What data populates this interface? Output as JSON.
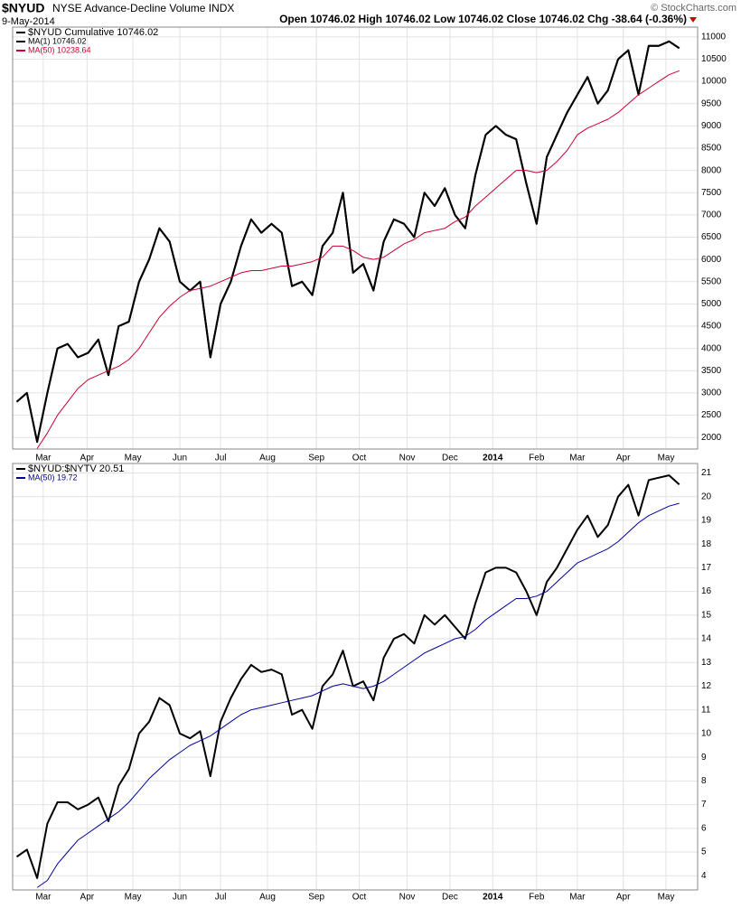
{
  "header": {
    "symbol": "$NYUD",
    "name": "NYSE Advance-Decline Volume INDX",
    "date": "9-May-2014",
    "quote": "Open 10746.02  High 10746.02  Low 10746.02  Close 10746.02  Chg -38.64 (-0.36%)",
    "source": "© StockCharts.com"
  },
  "chart_data": [
    {
      "type": "line",
      "xlim": [
        -0.4,
        66.8
      ],
      "ylim": [
        1740,
        11220
      ],
      "xticks": [
        {
          "value": 2.6,
          "label": "Mar"
        },
        {
          "value": 6.9,
          "label": "Apr"
        },
        {
          "value": 11.4,
          "label": "May"
        },
        {
          "value": 16,
          "label": "Jun"
        },
        {
          "value": 20,
          "label": "Jul"
        },
        {
          "value": 24.6,
          "label": "Aug"
        },
        {
          "value": 29.4,
          "label": "Sep"
        },
        {
          "value": 33.6,
          "label": "Oct"
        },
        {
          "value": 38.3,
          "label": "Nov"
        },
        {
          "value": 42.5,
          "label": "Dec"
        },
        {
          "value": 46.7,
          "label": "2014"
        },
        {
          "value": 51,
          "label": "Feb"
        },
        {
          "value": 55,
          "label": "Mar"
        },
        {
          "value": 59.5,
          "label": "Apr"
        },
        {
          "value": 63.7,
          "label": "May"
        }
      ],
      "yticks": [
        2000,
        2500,
        3000,
        3500,
        4000,
        4500,
        5000,
        5500,
        6000,
        6500,
        7000,
        7500,
        8000,
        8500,
        9000,
        9500,
        10000,
        10500,
        11000
      ],
      "grid": true,
      "series": [
        {
          "name": "$NYUD Cumulative 10746.02",
          "color": "#000000",
          "values": [
            2800,
            3000,
            1900,
            3000,
            4000,
            4100,
            3800,
            3900,
            4200,
            3400,
            4500,
            4600,
            5500,
            6000,
            6700,
            6400,
            5500,
            5300,
            5500,
            3800,
            5000,
            5500,
            6300,
            6900,
            6600,
            6800,
            6600,
            5400,
            5500,
            5200,
            6300,
            6600,
            7500,
            5700,
            5900,
            5300,
            6400,
            6900,
            6800,
            6500,
            7500,
            7200,
            7600,
            7000,
            6700,
            7900,
            8800,
            9000,
            8800,
            8700,
            7700,
            6800,
            8300,
            8800,
            9300,
            9700,
            10100,
            9500,
            9800,
            10500,
            10700,
            9700,
            10800,
            10800,
            10900,
            10746.02
          ]
        },
        {
          "name": "MA(1) 10746.02",
          "color": "#000000",
          "values": [
            2800,
            3000,
            1900,
            3000,
            4000,
            4100,
            3800,
            3900,
            4200,
            3400,
            4500,
            4600,
            5500,
            6000,
            6700,
            6400,
            5500,
            5300,
            5500,
            3800,
            5000,
            5500,
            6300,
            6900,
            6600,
            6800,
            6600,
            5400,
            5500,
            5200,
            6300,
            6600,
            7500,
            5700,
            5900,
            5300,
            6400,
            6900,
            6800,
            6500,
            7500,
            7200,
            7600,
            7000,
            6700,
            7900,
            8800,
            9000,
            8800,
            8700,
            7700,
            6800,
            8300,
            8800,
            9300,
            9700,
            10100,
            9500,
            9800,
            10500,
            10700,
            9700,
            10800,
            10800,
            10900,
            10746.02
          ]
        },
        {
          "name": "MA(50) 10238.64",
          "color": "#cc0033",
          "values": [
            null,
            null,
            1750,
            2100,
            2500,
            2800,
            3100,
            3300,
            3400,
            3500,
            3600,
            3750,
            4000,
            4350,
            4700,
            4950,
            5150,
            5300,
            5350,
            5400,
            5500,
            5600,
            5700,
            5750,
            5750,
            5800,
            5850,
            5850,
            5900,
            5950,
            6050,
            6300,
            6300,
            6200,
            6050,
            6000,
            6050,
            6200,
            6350,
            6450,
            6600,
            6650,
            6700,
            6850,
            6950,
            7200,
            7400,
            7600,
            7800,
            8000,
            8000,
            7950,
            8000,
            8200,
            8450,
            8800,
            8950,
            9050,
            9150,
            9300,
            9500,
            9700,
            9850,
            10000,
            10150,
            10238.64
          ]
        }
      ]
    },
    {
      "type": "line",
      "xlim": [
        -0.4,
        66.8
      ],
      "ylim": [
        3.4,
        21.4
      ],
      "xticks": [
        {
          "value": 2.6,
          "label": "Mar"
        },
        {
          "value": 6.9,
          "label": "Apr"
        },
        {
          "value": 11.4,
          "label": "May"
        },
        {
          "value": 16,
          "label": "Jun"
        },
        {
          "value": 20,
          "label": "Jul"
        },
        {
          "value": 24.6,
          "label": "Aug"
        },
        {
          "value": 29.4,
          "label": "Sep"
        },
        {
          "value": 33.6,
          "label": "Oct"
        },
        {
          "value": 38.3,
          "label": "Nov"
        },
        {
          "value": 42.5,
          "label": "Dec"
        },
        {
          "value": 46.7,
          "label": "2014"
        },
        {
          "value": 51,
          "label": "Feb"
        },
        {
          "value": 55,
          "label": "Mar"
        },
        {
          "value": 59.5,
          "label": "Apr"
        },
        {
          "value": 63.7,
          "label": "May"
        }
      ],
      "yticks": [
        4,
        5,
        6,
        7,
        8,
        9,
        10,
        11,
        12,
        13,
        14,
        15,
        16,
        17,
        18,
        19,
        20,
        21
      ],
      "grid": true,
      "series": [
        {
          "name": "$NYUD:$NYTV 20.51",
          "color": "#000000",
          "values": [
            4.8,
            5.1,
            3.9,
            6.2,
            7.1,
            7.1,
            6.8,
            7.0,
            7.3,
            6.3,
            7.8,
            8.5,
            10.0,
            10.5,
            11.5,
            11.2,
            10.0,
            9.8,
            10.1,
            8.2,
            10.5,
            11.5,
            12.3,
            12.9,
            12.6,
            12.7,
            12.5,
            10.8,
            11.0,
            10.2,
            12.0,
            12.5,
            13.5,
            12.0,
            12.2,
            11.4,
            13.2,
            14.0,
            14.2,
            13.8,
            15.0,
            14.6,
            15.0,
            14.5,
            14.0,
            15.5,
            16.8,
            17.0,
            17.0,
            16.8,
            16.0,
            15.0,
            16.4,
            17.0,
            17.8,
            18.6,
            19.2,
            18.3,
            18.8,
            20.0,
            20.5,
            19.2,
            20.7,
            20.8,
            20.9,
            20.51
          ]
        },
        {
          "name": "MA(50) 19.72",
          "color": "#000099",
          "values": [
            null,
            null,
            3.5,
            3.8,
            4.5,
            5.0,
            5.5,
            5.8,
            6.1,
            6.4,
            6.7,
            7.1,
            7.6,
            8.1,
            8.5,
            8.9,
            9.2,
            9.5,
            9.7,
            9.9,
            10.2,
            10.5,
            10.8,
            11.0,
            11.1,
            11.2,
            11.3,
            11.4,
            11.5,
            11.6,
            11.8,
            12.0,
            12.1,
            12.0,
            11.9,
            12.0,
            12.2,
            12.5,
            12.8,
            13.1,
            13.4,
            13.6,
            13.8,
            14.0,
            14.1,
            14.4,
            14.8,
            15.1,
            15.4,
            15.7,
            15.7,
            15.8,
            16.0,
            16.4,
            16.8,
            17.2,
            17.4,
            17.6,
            17.8,
            18.1,
            18.5,
            18.9,
            19.2,
            19.4,
            19.6,
            19.72
          ]
        }
      ]
    }
  ]
}
